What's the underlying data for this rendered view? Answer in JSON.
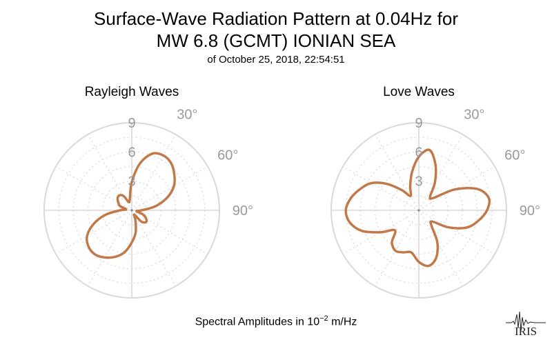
{
  "title_line1": "Surface-Wave Radiation Pattern at 0.04Hz for",
  "title_line2": "MW 6.8 (GCMT) IONIAN SEA",
  "subtitle": "of October 25, 2018, 22:54:51",
  "footer": {
    "prefix": "Spectral Amplitudes in ",
    "base": "10",
    "exponent": "−2",
    "unit": " m/Hz"
  },
  "logo_text": "IRIS",
  "colors": {
    "curve": "#c2794a",
    "grid": "#d9d9d9",
    "tick_label": "#9a9a9a"
  },
  "chart_data": [
    {
      "type": "polar",
      "title": "Rayleigh Waves",
      "radial_ticks": [
        "3",
        "6",
        "9"
      ],
      "radial_tick_values": [
        3,
        6,
        9
      ],
      "rmax": 9,
      "angle_ticks": [
        "30°",
        "60°",
        "90°"
      ],
      "angle_tick_values": [
        30,
        60,
        90
      ],
      "angle_unit": "degrees clockwise from north",
      "series": [
        {
          "points": [
            [
              0,
              2.9
            ],
            [
              10,
              4.9
            ],
            [
              20,
              6.2
            ],
            [
              30,
              6.5
            ],
            [
              40,
              6.3
            ],
            [
              50,
              5.7
            ],
            [
              60,
              5.0
            ],
            [
              70,
              3.9
            ],
            [
              80,
              2.5
            ],
            [
              90,
              1.0
            ],
            [
              100,
              0.5
            ],
            [
              110,
              1.2
            ],
            [
              120,
              1.7
            ],
            [
              130,
              1.9
            ],
            [
              140,
              1.5
            ],
            [
              150,
              0.5
            ],
            [
              160,
              1.1
            ],
            [
              170,
              2.3
            ],
            [
              180,
              3.3
            ],
            [
              190,
              4.4
            ],
            [
              200,
              5.1
            ],
            [
              210,
              5.6
            ],
            [
              220,
              5.9
            ],
            [
              230,
              5.8
            ],
            [
              240,
              5.3
            ],
            [
              250,
              4.2
            ],
            [
              260,
              2.8
            ],
            [
              270,
              1.2
            ],
            [
              280,
              0.6
            ],
            [
              290,
              1.3
            ],
            [
              300,
              1.6
            ],
            [
              310,
              1.9
            ],
            [
              320,
              2.0
            ],
            [
              330,
              1.7
            ],
            [
              340,
              0.9
            ],
            [
              350,
              1.2
            ],
            [
              360,
              2.9
            ]
          ]
        }
      ]
    },
    {
      "type": "polar",
      "title": "Love Waves",
      "radial_ticks": [
        "3",
        "6",
        "9"
      ],
      "radial_tick_values": [
        3,
        6,
        9
      ],
      "rmax": 9,
      "angle_ticks": [
        "30°",
        "60°",
        "90°"
      ],
      "angle_tick_values": [
        30,
        60,
        90
      ],
      "angle_unit": "degrees clockwise from north",
      "series": [
        {
          "points": [
            [
              0,
              5.5
            ],
            [
              10,
              6.3
            ],
            [
              20,
              5.0
            ],
            [
              30,
              3.3
            ],
            [
              40,
              1.8
            ],
            [
              50,
              2.0
            ],
            [
              60,
              4.3
            ],
            [
              70,
              6.4
            ],
            [
              80,
              7.3
            ],
            [
              90,
              7.0
            ],
            [
              100,
              6.2
            ],
            [
              110,
              5.2
            ],
            [
              120,
              3.5
            ],
            [
              130,
              1.8
            ],
            [
              140,
              2.0
            ],
            [
              150,
              3.8
            ],
            [
              160,
              5.2
            ],
            [
              170,
              5.8
            ],
            [
              180,
              5.3
            ],
            [
              190,
              4.4
            ],
            [
              200,
              4.6
            ],
            [
              210,
              4.8
            ],
            [
              220,
              4.3
            ],
            [
              230,
              3.2
            ],
            [
              240,
              4.5
            ],
            [
              250,
              6.2
            ],
            [
              260,
              7.2
            ],
            [
              270,
              7.5
            ],
            [
              280,
              7.1
            ],
            [
              290,
              6.4
            ],
            [
              300,
              5.6
            ],
            [
              310,
              4.2
            ],
            [
              320,
              2.7
            ],
            [
              330,
              1.7
            ],
            [
              340,
              2.6
            ],
            [
              350,
              4.0
            ],
            [
              360,
              5.5
            ]
          ]
        }
      ]
    }
  ]
}
